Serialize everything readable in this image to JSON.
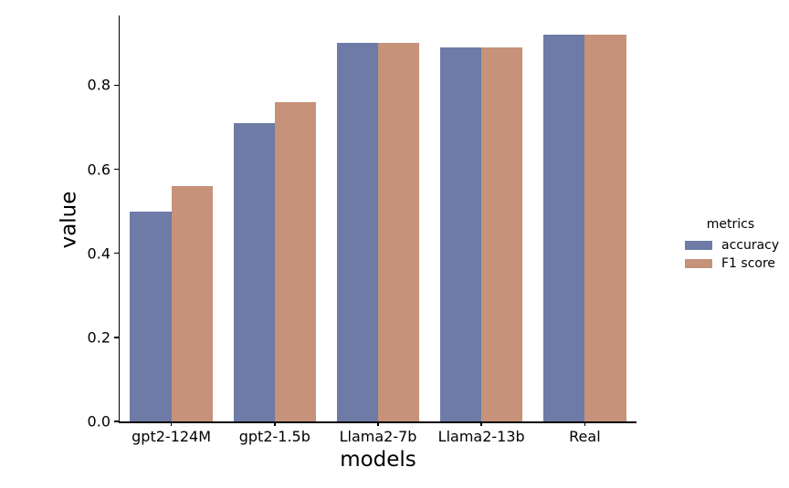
{
  "figure": {
    "background": "#ffffff",
    "text_color": "#000000",
    "axis_color": "#000000"
  },
  "chart_data": {
    "type": "bar",
    "title": "",
    "xlabel": "models",
    "ylabel": "value",
    "categories": [
      "gpt2-124M",
      "gpt2-1.5b",
      "Llama2-7b",
      "Llama2-13b",
      "Real"
    ],
    "series": [
      {
        "name": "accuracy",
        "color": "#6d7ba6",
        "values": [
          0.5,
          0.71,
          0.9,
          0.89,
          0.92
        ]
      },
      {
        "name": "F1 score",
        "color": "#c69279",
        "values": [
          0.56,
          0.76,
          0.9,
          0.89,
          0.92
        ]
      }
    ],
    "y_ticks": [
      {
        "value": 0.0,
        "label": "0.0"
      },
      {
        "value": 0.2,
        "label": "0.2"
      },
      {
        "value": 0.4,
        "label": "0.4"
      },
      {
        "value": 0.6,
        "label": "0.6"
      },
      {
        "value": 0.8,
        "label": "0.8"
      }
    ],
    "ylim": [
      0,
      0.966
    ],
    "grid": false,
    "bar_group_fraction": 0.8,
    "legend": {
      "title": "metrics",
      "position": "center right, outside plot",
      "frame": false
    }
  }
}
